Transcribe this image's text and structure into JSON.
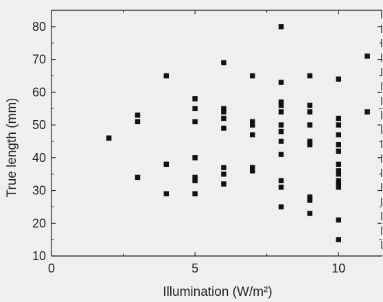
{
  "chart_data": {
    "type": "scatter",
    "title": "",
    "xlabel": "Illumination (W/m²)",
    "ylabel": "True length (mm)",
    "xlim": [
      0,
      11.5
    ],
    "ylim": [
      10,
      85
    ],
    "x_ticks": [
      0,
      5,
      10
    ],
    "y_ticks": [
      10,
      20,
      30,
      40,
      50,
      60,
      70,
      80
    ],
    "grid": false,
    "legend": "none",
    "marker": "square",
    "marker_color": "#111111",
    "series": [
      {
        "points": [
          [
            2,
            46
          ],
          [
            3,
            53
          ],
          [
            3,
            51
          ],
          [
            3,
            34
          ],
          [
            4,
            65
          ],
          [
            4,
            38
          ],
          [
            4,
            29
          ],
          [
            5,
            58
          ],
          [
            5,
            55
          ],
          [
            5,
            51
          ],
          [
            5,
            40
          ],
          [
            5,
            34
          ],
          [
            5,
            33
          ],
          [
            5,
            29
          ],
          [
            6,
            69
          ],
          [
            6,
            55
          ],
          [
            6,
            54
          ],
          [
            6,
            52
          ],
          [
            6,
            49
          ],
          [
            6,
            37
          ],
          [
            6,
            35
          ],
          [
            6,
            32
          ],
          [
            7,
            65
          ],
          [
            7,
            51
          ],
          [
            7,
            50
          ],
          [
            7,
            47
          ],
          [
            7,
            37
          ],
          [
            7,
            36
          ],
          [
            8,
            80
          ],
          [
            8,
            63
          ],
          [
            8,
            57
          ],
          [
            8,
            56
          ],
          [
            8,
            54
          ],
          [
            8,
            50
          ],
          [
            8,
            48
          ],
          [
            8,
            45
          ],
          [
            8,
            41
          ],
          [
            8,
            33
          ],
          [
            8,
            31
          ],
          [
            8,
            25
          ],
          [
            9,
            65
          ],
          [
            9,
            56
          ],
          [
            9,
            54
          ],
          [
            9,
            50
          ],
          [
            9,
            45
          ],
          [
            9,
            44
          ],
          [
            9,
            28
          ],
          [
            9,
            27
          ],
          [
            9,
            23
          ],
          [
            10,
            64
          ],
          [
            10,
            52
          ],
          [
            10,
            50
          ],
          [
            10,
            47
          ],
          [
            10,
            44
          ],
          [
            10,
            42
          ],
          [
            10,
            38
          ],
          [
            10,
            36
          ],
          [
            10,
            35
          ],
          [
            10,
            33
          ],
          [
            10,
            32
          ],
          [
            10,
            31
          ],
          [
            10,
            21
          ],
          [
            10,
            15
          ],
          [
            11,
            71
          ],
          [
            11,
            54
          ]
        ]
      }
    ]
  }
}
